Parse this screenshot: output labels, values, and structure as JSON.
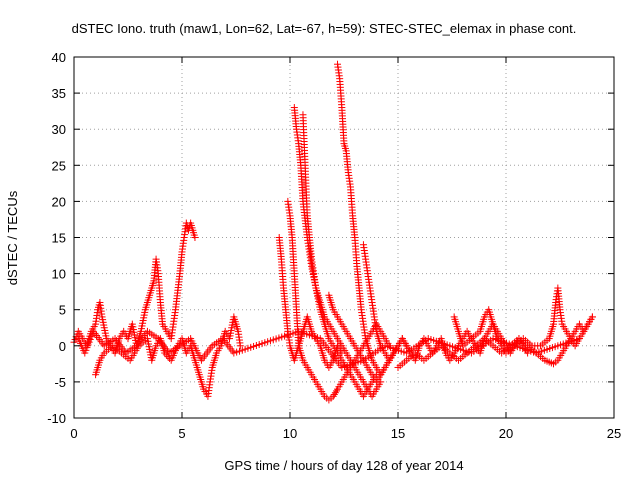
{
  "chart_data": {
    "type": "scatter",
    "title": "dSTEC Iono. truth (maw1, Lon=62, Lat=-67, h=59): STEC-STEC_elemax in phase cont.",
    "xlabel": "GPS time / hours of day 128 of year 2014",
    "ylabel": "dSTEC  / TECUs",
    "xlim": [
      0,
      25
    ],
    "ylim": [
      -10,
      40
    ],
    "xticks": [
      0,
      5,
      10,
      15,
      20,
      25
    ],
    "yticks": [
      -10,
      -5,
      0,
      5,
      10,
      15,
      20,
      25,
      30,
      35,
      40
    ],
    "grid": true,
    "marker": "+",
    "color": "#ff0000",
    "series": [
      {
        "x": [
          0.0,
          0.2,
          0.4,
          0.6,
          0.8,
          1.0,
          1.1,
          1.2,
          1.3,
          1.5,
          1.7,
          1.9,
          2.1,
          2.3,
          2.5,
          2.7,
          2.9,
          3.1,
          3.3,
          3.5,
          3.7,
          3.8,
          3.9,
          4.0,
          4.1,
          4.3,
          4.5,
          4.7,
          4.9,
          5.0,
          5.1,
          5.2,
          5.3,
          5.4,
          5.5,
          5.6
        ],
        "y": [
          0.5,
          2,
          1,
          0,
          2,
          3,
          5,
          6,
          4,
          1,
          0,
          -1,
          1,
          2,
          1,
          3,
          0,
          2,
          5,
          7,
          9,
          12,
          10,
          6,
          3,
          2,
          1,
          5,
          10,
          13,
          15,
          17,
          16,
          17,
          16,
          15
        ]
      },
      {
        "x": [
          1.0,
          1.2,
          1.4,
          1.8,
          2.2,
          2.6,
          3.0,
          3.4,
          3.6,
          3.8,
          4.0,
          4.2,
          4.5,
          4.8,
          5.0,
          5.2,
          5.4,
          5.6,
          5.8,
          6.0,
          6.2,
          6.4,
          6.6,
          6.8,
          7.0,
          7.2,
          7.4,
          7.6,
          7.7
        ],
        "y": [
          -4,
          -2,
          -1,
          0,
          -1,
          -2,
          0,
          1,
          -2,
          0,
          1,
          -1,
          -2,
          0,
          1,
          -1,
          0,
          -2,
          -4,
          -6,
          -7,
          -3,
          -1,
          0,
          2,
          1,
          4,
          2,
          0
        ]
      },
      {
        "x": [
          9.5,
          9.6,
          9.7,
          9.8,
          9.9,
          10.0,
          10.1,
          10.2,
          10.3,
          10.4,
          10.5,
          10.6,
          10.7,
          10.8,
          10.9,
          11.0,
          11.2,
          11.4,
          11.6,
          11.8,
          12.0,
          12.2,
          12.4
        ],
        "y": [
          15,
          12,
          8,
          5,
          2,
          0,
          -1,
          -2,
          -1,
          0,
          1,
          2,
          3,
          4,
          3,
          2,
          1,
          0,
          -2,
          -3,
          -2,
          0,
          -1
        ]
      },
      {
        "x": [
          9.9,
          10.0,
          10.1,
          10.2,
          10.3,
          10.4,
          10.5,
          10.6,
          10.8,
          11.0,
          11.2,
          11.4,
          11.6,
          11.8,
          12.0,
          12.1,
          12.2,
          12.4,
          12.6,
          12.8,
          13.0,
          13.2,
          13.4,
          13.6,
          13.8,
          14.0,
          14.2,
          14.4,
          14.6
        ],
        "y": [
          20,
          18,
          15,
          10,
          5,
          0,
          -1,
          -2,
          -3,
          -4,
          -5,
          -6,
          -7,
          -7.5,
          -7,
          -6.5,
          -6,
          -5,
          -4,
          -3,
          -2,
          -1,
          0,
          1,
          2,
          3,
          2,
          1,
          0
        ]
      },
      {
        "x": [
          10.2,
          10.3,
          10.4,
          10.5,
          10.6,
          10.8,
          11.0,
          11.2,
          11.4,
          11.6,
          11.8,
          12.0,
          12.2,
          12.4,
          12.6,
          12.8,
          13.0,
          13.2,
          13.4,
          13.6,
          13.8,
          14.0
        ],
        "y": [
          33,
          30,
          28,
          25,
          20,
          15,
          11,
          8,
          5,
          3,
          1,
          0,
          -1,
          -2,
          -3,
          -4,
          -5,
          -6,
          -7,
          -6,
          -5,
          -4
        ]
      },
      {
        "x": [
          10.6,
          10.7,
          10.8,
          10.9,
          11.0,
          11.1,
          11.2,
          11.4,
          11.6,
          11.8,
          12.0,
          12.2,
          12.4,
          12.6,
          12.8,
          13.0,
          13.2,
          13.4,
          13.6,
          13.8,
          14.0,
          14.2
        ],
        "y": [
          32,
          25,
          18,
          15,
          12,
          10,
          8,
          6,
          4,
          3,
          2,
          1,
          0,
          -1,
          -2,
          -3,
          -4,
          -5,
          -6,
          -7,
          -6,
          -5
        ]
      },
      {
        "x": [
          12.2,
          12.3,
          12.4,
          12.5,
          12.6,
          12.7,
          12.8,
          12.9,
          13.0,
          13.1,
          13.2,
          13.3,
          13.4,
          13.5,
          13.6,
          13.8,
          14.0,
          14.2,
          14.4,
          14.6,
          14.8,
          15.0
        ],
        "y": [
          39,
          37,
          33,
          28,
          27,
          24,
          22,
          18,
          15,
          11,
          8,
          5,
          3,
          1,
          0,
          -2,
          -3,
          -4,
          -3,
          -2,
          -1,
          0
        ]
      },
      {
        "x": [
          11.8,
          12.0,
          12.2,
          12.4,
          12.6,
          12.8,
          13.0,
          13.2,
          13.4,
          13.6,
          13.8,
          14.0,
          14.2,
          14.4,
          14.6,
          14.8,
          15.0,
          15.2,
          15.4,
          15.6
        ],
        "y": [
          7,
          5,
          4,
          3,
          2,
          1,
          0,
          -1,
          -2,
          -3,
          -4,
          -5,
          -4,
          -3,
          -2,
          -1,
          0,
          1,
          0,
          -1
        ]
      },
      {
        "x": [
          13.4,
          13.5,
          13.6,
          13.7,
          13.8,
          13.9,
          14.0,
          14.1,
          14.2,
          14.4,
          14.6,
          14.8,
          15.0,
          15.2,
          15.4,
          15.6,
          15.8,
          16.0,
          16.2,
          16.4,
          16.6,
          16.8,
          17.0,
          17.2,
          17.4,
          17.6,
          17.8,
          18.0,
          18.2,
          18.4,
          18.6,
          18.8,
          19.0,
          19.2,
          19.4,
          19.6,
          19.8,
          20.0,
          20.2,
          20.4,
          20.6,
          20.8,
          21.0
        ],
        "y": [
          14,
          12,
          10,
          8,
          6,
          4,
          2,
          1,
          0,
          -1,
          -2,
          -1,
          0,
          1,
          0,
          -1,
          -2,
          0,
          1,
          0,
          -1,
          0,
          1,
          -1,
          -2,
          -1,
          0,
          1,
          2,
          1,
          0,
          -1,
          1,
          2,
          3,
          2,
          1,
          0,
          -1,
          0,
          1,
          0,
          -1
        ]
      },
      {
        "x": [
          15.0,
          15.4,
          15.8,
          16.2,
          16.6,
          17.0,
          17.4,
          17.8,
          18.2,
          18.6,
          19.0,
          19.4,
          19.8,
          20.2,
          20.6,
          21.0,
          21.4,
          21.8,
          22.2,
          22.4,
          22.6,
          22.8,
          23.0,
          23.2,
          23.4,
          23.6,
          23.8,
          24.0
        ],
        "y": [
          -3,
          -2,
          -1,
          -2,
          -1,
          0,
          -1,
          -2,
          -1,
          0,
          1,
          0,
          -1,
          0,
          1,
          0,
          -1,
          -2,
          -2.5,
          -2,
          -1,
          0,
          1,
          2,
          3,
          2,
          3,
          4
        ]
      },
      {
        "x": [
          17.6,
          17.8,
          18.0,
          18.4,
          18.8,
          19.0,
          19.2,
          19.4,
          19.6,
          19.8,
          20.0,
          20.4,
          20.8,
          21.2,
          21.6,
          22.0,
          22.2,
          22.3,
          22.4,
          22.5,
          22.6,
          22.8,
          23.0,
          23.2,
          23.4,
          23.6,
          23.8,
          24.0
        ],
        "y": [
          4,
          2,
          0,
          1,
          2,
          4,
          5,
          3,
          1,
          0,
          -1,
          0,
          1,
          0,
          0,
          1,
          3,
          6,
          8,
          5,
          3,
          2,
          1,
          0,
          1,
          2,
          3,
          4
        ]
      },
      {
        "x": [
          0.2,
          0.5,
          0.9,
          1.4,
          1.9,
          2.4,
          2.9,
          3.4,
          3.9,
          4.4,
          4.9,
          5.4,
          5.9,
          6.4,
          6.9,
          7.4,
          10.4,
          11.4,
          12.4,
          13.4,
          14.4,
          15.4,
          16.4,
          17.4,
          18.4,
          19.4,
          20.4,
          21.4,
          22.4,
          23.4
        ],
        "y": [
          1,
          -1,
          2,
          0,
          1,
          -1,
          0,
          2,
          1,
          -1,
          0,
          1,
          -2,
          0,
          1,
          -1,
          2,
          1,
          -3,
          -2,
          0,
          -1,
          1,
          0,
          -1,
          1,
          0,
          -1,
          0,
          1
        ]
      }
    ]
  }
}
